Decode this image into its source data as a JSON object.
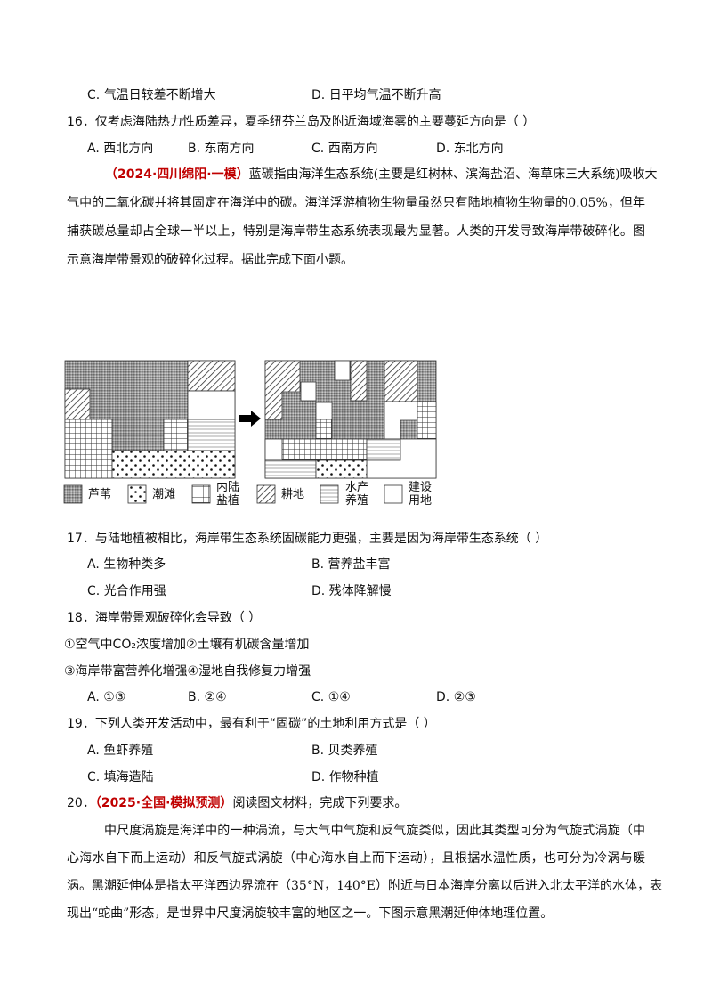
{
  "q15_tail": {
    "options": [
      {
        "key": "C.",
        "text": "气温日较差不断增大"
      },
      {
        "key": "D.",
        "text": "日平均气温不断升高"
      }
    ]
  },
  "q16": {
    "stem": "16．仅考虑海陆热力性质差异，夏季纽芬兰岛及附近海域海雾的主要蔓延方向是（    ）",
    "options": [
      {
        "key": "A.",
        "text": "西北方向"
      },
      {
        "key": "B.",
        "text": "东南方向"
      },
      {
        "key": "C.",
        "text": "西南方向"
      },
      {
        "key": "D.",
        "text": "东北方向"
      }
    ]
  },
  "material1": {
    "source": "（2024·四川绵阳·一模）",
    "source_color": "#c00000",
    "lines": [
      "蓝碳指由海洋生态系统(主要是红树林、滨海盐沼、海草床三大系统)吸收大",
      "气中的二氧化碳并将其固定在海洋中的碳。海洋浮游植物生物量虽然只有陆地植物生物量的0.05%，但年",
      "捕获碳总量却占全球一半以上，特别是海岸带生态系统表现最为显著。人类的开发导致海岸带破碎化。图",
      "示意海岸带景观的破碎化过程。据此完成下面小题。"
    ]
  },
  "figure": {
    "legend": [
      {
        "pattern": "reed",
        "label": "芦苇"
      },
      {
        "pattern": "tidal",
        "label": "潮滩"
      },
      {
        "pattern": "salt",
        "label_lines": [
          "内陆",
          "盐植"
        ]
      },
      {
        "pattern": "farm",
        "label": "耕地"
      },
      {
        "pattern": "aqua",
        "label_lines": [
          "水产",
          "养殖"
        ]
      },
      {
        "pattern": "build",
        "label_lines": [
          "建设",
          "用地"
        ]
      }
    ],
    "arrow_icon": "right-arrow-icon"
  },
  "q17": {
    "stem": "17．与陆地植被相比，海岸带生态系统固碳能力更强，主要是因为海岸带生态系统（    ）",
    "options": [
      {
        "key": "A.",
        "text": "生物种类多"
      },
      {
        "key": "B.",
        "text": "营养盐丰富"
      },
      {
        "key": "C.",
        "text": "光合作用强"
      },
      {
        "key": "D.",
        "text": "残体降解慢"
      }
    ]
  },
  "q18": {
    "stem": "18．海岸带景观破碎化会导致（    ）",
    "items": [
      "①空气中CO₂浓度增加②土壤有机碳含量增加",
      "③海岸带富营养化增强④湿地自我修复力增强"
    ],
    "options": [
      {
        "key": "A.",
        "text": "①③"
      },
      {
        "key": "B.",
        "text": "②④"
      },
      {
        "key": "C.",
        "text": "①④"
      },
      {
        "key": "D.",
        "text": "②③"
      }
    ]
  },
  "q19": {
    "stem": "19．下列人类开发活动中，最有利于“固碳”的土地利用方式是（    ）",
    "options": [
      {
        "key": "A.",
        "text": "鱼虾养殖"
      },
      {
        "key": "B.",
        "text": "贝类养殖"
      },
      {
        "key": "C.",
        "text": "填海造陆"
      },
      {
        "key": "D.",
        "text": "作物种植"
      }
    ]
  },
  "q20": {
    "number": "20．",
    "source": "（2025·全国·模拟预测）",
    "stem": "阅读图文材料，完成下列要求。",
    "lines": [
      "中尺度涡旋是海洋中的一种涡流，与大气中气旋和反气旋类似，因此其类型可分为气旋式涡旋（中",
      "心海水自下而上运动）和反气旋式涡旋（中心海水自上而下运动），且根据水温性质，也可分为冷涡与暖",
      "涡。黑潮延伸体是指太平洋西边界流在（35°N，140°E）附近与日本海岸分离以后进入北太平洋的水体，表",
      "现出“蛇曲”形态，是世界中尺度涡旋较丰富的地区之一。下图示意黑潮延伸体地理位置。"
    ]
  }
}
